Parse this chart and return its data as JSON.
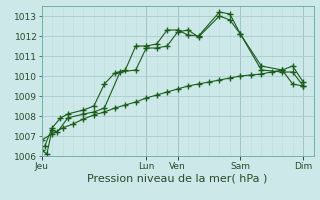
{
  "xlabel": "Pression niveau de la mer( hPa )",
  "bg_color": "#cce8e8",
  "grid_color_major": "#aacccc",
  "grid_color_minor": "#bbdcdc",
  "line_color": "#1a5c1a",
  "ylim": [
    1006,
    1013.5
  ],
  "yticks": [
    1006,
    1007,
    1008,
    1009,
    1010,
    1011,
    1012,
    1013
  ],
  "xtick_labels": [
    "Jeu",
    "Lun",
    "Ven",
    "Sam",
    "Dim"
  ],
  "xtick_pos": [
    0,
    10,
    13,
    19,
    25
  ],
  "xlim": [
    0,
    26
  ],
  "series1_x": [
    0,
    0.5,
    1.0,
    1.5,
    2.5,
    4,
    5,
    6,
    7.5,
    9,
    10,
    11,
    12,
    13,
    14,
    15,
    17,
    18,
    19,
    21,
    23,
    24,
    25
  ],
  "series1_y": [
    1006.3,
    1006.1,
    1007.3,
    1007.2,
    1007.9,
    1008.1,
    1008.2,
    1008.4,
    1010.2,
    1010.3,
    1011.4,
    1011.4,
    1011.5,
    1012.2,
    1012.3,
    1011.95,
    1013.0,
    1012.8,
    1012.1,
    1010.5,
    1010.3,
    1010.5,
    1009.7
  ],
  "series2_x": [
    0.3,
    1.0,
    1.8,
    2.5,
    4,
    5,
    6,
    7,
    8,
    9,
    10,
    11,
    12,
    13,
    14,
    15,
    17,
    18,
    19,
    21,
    23,
    24,
    25
  ],
  "series2_y": [
    1006.5,
    1007.4,
    1007.9,
    1008.1,
    1008.3,
    1008.5,
    1009.6,
    1010.15,
    1010.3,
    1011.5,
    1011.5,
    1011.6,
    1012.3,
    1012.3,
    1012.05,
    1012.0,
    1013.2,
    1013.1,
    1012.1,
    1010.3,
    1010.2,
    1010.2,
    1009.5
  ],
  "series3_x": [
    0,
    1,
    2,
    3,
    4,
    5,
    6,
    7,
    8,
    9,
    10,
    11,
    12,
    13,
    14,
    15,
    16,
    17,
    18,
    19,
    20,
    21,
    22,
    23,
    24,
    25
  ],
  "series3_y": [
    1006.8,
    1007.1,
    1007.4,
    1007.6,
    1007.85,
    1008.05,
    1008.2,
    1008.4,
    1008.55,
    1008.7,
    1008.9,
    1009.05,
    1009.2,
    1009.35,
    1009.5,
    1009.6,
    1009.7,
    1009.8,
    1009.9,
    1010.0,
    1010.05,
    1010.1,
    1010.2,
    1010.3,
    1009.6,
    1009.5
  ],
  "xlabel_fontsize": 8,
  "tick_fontsize": 6.5
}
